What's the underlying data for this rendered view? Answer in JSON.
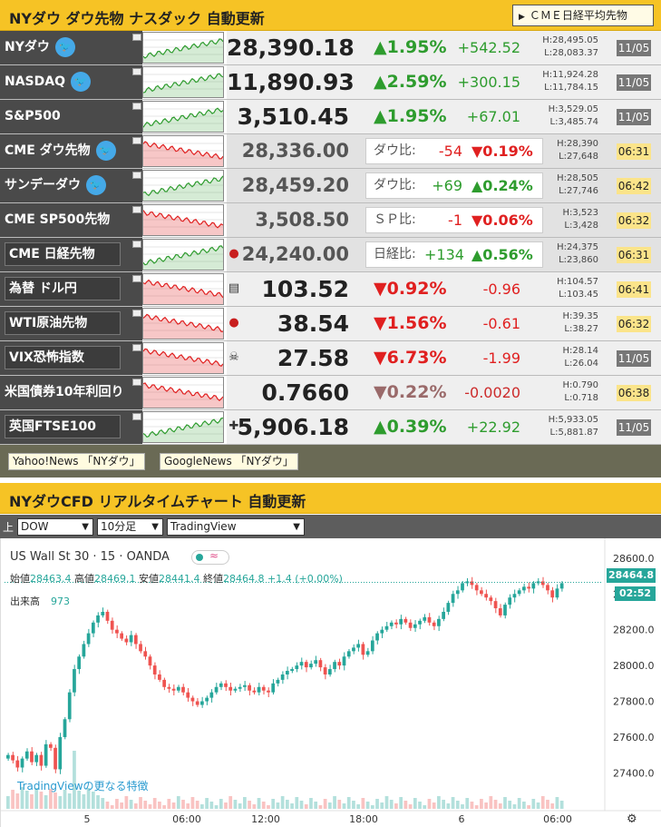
{
  "header": {
    "title": "NYダウ ダウ先物 ナスダック 自動更新",
    "cme_button": "ＣＭＥ日経平均先物"
  },
  "rows": [
    {
      "name": "NYダウ",
      "twitter": true,
      "price": "28,390.18",
      "pct": "▲1.95%",
      "chg": "+542.52",
      "high": "H:28,495.05",
      "low": "L:28,083.37",
      "time": "11/05",
      "dir": "up",
      "style": "main"
    },
    {
      "name": "NASDAQ",
      "twitter": true,
      "price": "11,890.93",
      "pct": "▲2.59%",
      "chg": "+300.15",
      "high": "H:11,924.28",
      "low": "L:11,784.15",
      "time": "11/05",
      "dir": "up",
      "style": "main"
    },
    {
      "name": "S&P500",
      "twitter": false,
      "price": "3,510.45",
      "pct": "▲1.95%",
      "chg": "+67.01",
      "high": "H:3,529.05",
      "low": "L:3,485.74",
      "time": "11/05",
      "dir": "up",
      "style": "main"
    },
    {
      "name": "CME ダウ先物",
      "twitter": true,
      "price": "28,336.00",
      "cmp_label": "ダウ比:",
      "cmp_diff": "-54",
      "cmp_pct": "▼0.19%",
      "high": "H:28,390",
      "low": "L:27,648",
      "time": "06:31",
      "dir": "down",
      "style": "light"
    },
    {
      "name": "サンデーダウ",
      "twitter": true,
      "price": "28,459.20",
      "cmp_label": "ダウ比:",
      "cmp_diff": "+69",
      "cmp_pct": "▲0.24%",
      "high": "H:28,505",
      "low": "L:27,746",
      "time": "06:42",
      "dir": "up",
      "style": "light"
    },
    {
      "name": "CME SP500先物",
      "twitter": false,
      "price": "3,508.50",
      "cmp_label": "ＳＰ比:",
      "cmp_diff": "-1",
      "cmp_pct": "▼0.06%",
      "high": "H:3,523",
      "low": "L:3,428",
      "time": "06:32",
      "dir": "down",
      "style": "light"
    },
    {
      "name": "CME 日経先物",
      "boxed": true,
      "flag": "●",
      "price": "24,240.00",
      "cmp_label": "日経比:",
      "cmp_diff": "+134",
      "cmp_pct": "▲0.56%",
      "high": "H:24,375",
      "low": "L:23,860",
      "time": "06:31",
      "dir": "up",
      "style": "light"
    },
    {
      "name": "為替 ドル円",
      "boxed": true,
      "flag": "▤",
      "price": "103.52",
      "pct": "▼0.92%",
      "chg": "-0.96",
      "high": "H:104.57",
      "low": "L:103.45",
      "time": "06:41",
      "dir": "down",
      "style": "main"
    },
    {
      "name": "WTI原油先物",
      "boxed": true,
      "flag": "●",
      "price": "38.54",
      "pct": "▼1.56%",
      "chg": "-0.61",
      "high": "H:39.35",
      "low": "L:38.27",
      "time": "06:32",
      "dir": "down",
      "style": "main"
    },
    {
      "name": "VIX恐怖指数",
      "boxed": true,
      "flag": "☠",
      "price": "27.58",
      "pct": "▼6.73%",
      "chg": "-1.99",
      "high": "H:28.14",
      "low": "L:26.04",
      "time": "11/05",
      "dir": "down",
      "style": "main"
    },
    {
      "name": "米国債券10年利回り",
      "twitter": false,
      "price": "0.7660",
      "pct": "▼0.22%",
      "chg": "-0.0020",
      "high": "H:0.790",
      "low": "L:0.718",
      "time": "06:38",
      "dir": "down2",
      "style": "main"
    },
    {
      "name": "英国FTSE100",
      "boxed": true,
      "flag": "✚",
      "price": "5,906.18",
      "pct": "▲0.39%",
      "chg": "+22.92",
      "high": "H:5,933.05",
      "low": "L:5,881.87",
      "time": "11/05",
      "dir": "up",
      "style": "main"
    }
  ],
  "links": [
    "Yahoo!News 「NYダウ」",
    "GoogleNews 「NYダウ」"
  ],
  "header2": {
    "title": "NYダウCFD リアルタイムチャート 自動更新"
  },
  "toolbar": {
    "label": "上",
    "symbol": "DOW",
    "interval": "10分足",
    "provider": "TradingView"
  },
  "chart": {
    "symbol": "US Wall St 30 · 15 · OANDA",
    "open_label": "始値",
    "open": "28463.4",
    "high_label": "高値",
    "high": "28469.1",
    "low_label": "安値",
    "low": "28441.4",
    "close_label": "終値",
    "close": "28464.8",
    "change": "+1.4 (+0.00%)",
    "volume_label": "出来高",
    "volume": "973",
    "last_price": "28464.8",
    "countdown": "02:52",
    "tv_link": "TradingViewの更なる特徴",
    "y_ticks": [
      "28600.0",
      "28400.0",
      "28200.0",
      "28000.0",
      "27800.0",
      "27600.0",
      "27400.0"
    ],
    "x_ticks": [
      "5",
      "06:00",
      "12:00",
      "18:00",
      "6",
      "06:00"
    ]
  },
  "chart_data": {
    "type": "candlestick",
    "ylim": [
      27260,
      28660
    ],
    "closes": [
      27500,
      27470,
      27430,
      27480,
      27520,
      27460,
      27500,
      27440,
      27560,
      27540,
      27420,
      27600,
      27700,
      27850,
      27980,
      28050,
      28120,
      28180,
      28240,
      28280,
      28300,
      28250,
      28200,
      28180,
      28150,
      28130,
      28170,
      28120,
      28080,
      28050,
      28000,
      27950,
      27920,
      27880,
      27870,
      27860,
      27880,
      27850,
      27820,
      27800,
      27780,
      27800,
      27820,
      27850,
      27880,
      27900,
      27880,
      27860,
      27870,
      27880,
      27890,
      27860,
      27850,
      27880,
      27860,
      27850,
      27900,
      27920,
      27950,
      27970,
      27980,
      28000,
      28020,
      27990,
      28010,
      28030,
      27990,
      27950,
      27980,
      28020,
      28000,
      28050,
      28080,
      28100,
      28120,
      28060,
      28080,
      28140,
      28180,
      28200,
      28220,
      28240,
      28230,
      28260,
      28240,
      28210,
      28230,
      28250,
      28270,
      28240,
      28220,
      28260,
      28300,
      28350,
      28400,
      28420,
      28460,
      28470,
      28450,
      28420,
      28400,
      28380,
      28360,
      28320,
      28280,
      28340,
      28380,
      28400,
      28420,
      28440,
      28430,
      28460,
      28470,
      28450,
      28420,
      28380,
      28430,
      28460
    ]
  }
}
